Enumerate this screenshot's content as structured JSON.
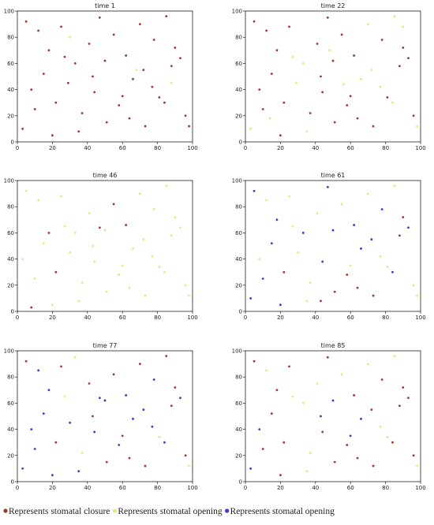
{
  "chart_data": [
    {
      "type": "scatter",
      "title": "time 1",
      "xlim": [
        0,
        100
      ],
      "ylim": [
        0,
        100
      ],
      "xticks": [
        0,
        20,
        40,
        60,
        80,
        100
      ],
      "yticks": [
        0,
        20,
        40,
        60,
        80,
        100
      ],
      "series": [
        {
          "color": "#a3372b",
          "x": [
            5,
            12,
            18,
            25,
            33,
            41,
            47,
            55,
            62,
            70,
            78,
            85,
            93,
            8,
            15,
            22,
            29,
            37,
            44,
            51,
            58,
            66,
            73,
            81,
            88,
            96,
            3,
            20,
            35,
            50,
            64,
            77,
            90,
            10,
            27,
            43,
            60,
            72,
            84,
            98
          ],
          "y": [
            92,
            85,
            70,
            88,
            60,
            75,
            95,
            82,
            66,
            90,
            78,
            96,
            64,
            40,
            52,
            30,
            45,
            22,
            38,
            15,
            28,
            48,
            12,
            34,
            58,
            20,
            10,
            5,
            8,
            62,
            18,
            42,
            72,
            25,
            65,
            50,
            35,
            55,
            30,
            12
          ]
        },
        {
          "color": "#ede57a",
          "x": [
            30,
            68,
            88
          ],
          "y": [
            80,
            55,
            45
          ]
        }
      ]
    },
    {
      "type": "scatter",
      "title": "time 22",
      "xlim": [
        0,
        100
      ],
      "ylim": [
        0,
        100
      ],
      "xticks": [
        0,
        20,
        40,
        60,
        80,
        100
      ],
      "yticks": [
        0,
        20,
        40,
        60,
        80,
        100
      ],
      "series": [
        {
          "color": "#a3372b",
          "x": [
            5,
            12,
            18,
            25,
            41,
            47,
            55,
            62,
            78,
            93,
            8,
            15,
            22,
            37,
            44,
            51,
            58,
            73,
            81,
            88,
            96,
            20,
            50,
            64,
            90,
            10,
            43,
            60
          ],
          "y": [
            92,
            85,
            70,
            88,
            75,
            95,
            82,
            66,
            78,
            64,
            40,
            52,
            30,
            22,
            38,
            15,
            28,
            12,
            34,
            58,
            20,
            5,
            62,
            18,
            72,
            25,
            50,
            35
          ]
        },
        {
          "color": "#ede57a",
          "x": [
            33,
            70,
            85,
            29,
            66,
            3,
            35,
            77,
            27,
            72,
            84,
            98,
            48,
            56,
            90,
            14
          ],
          "y": [
            60,
            90,
            96,
            45,
            48,
            10,
            8,
            42,
            65,
            55,
            30,
            12,
            70,
            44,
            88,
            18
          ]
        }
      ]
    },
    {
      "type": "scatter",
      "title": "time 46",
      "xlim": [
        0,
        100
      ],
      "ylim": [
        0,
        100
      ],
      "xticks": [
        0,
        20,
        40,
        60,
        80,
        100
      ],
      "yticks": [
        0,
        20,
        40,
        60,
        80,
        100
      ],
      "series": [
        {
          "color": "#a3372b",
          "x": [
            18,
            47,
            55,
            62,
            8,
            22
          ],
          "y": [
            60,
            64,
            82,
            66,
            3,
            30
          ]
        },
        {
          "color": "#ede57a",
          "x": [
            5,
            12,
            25,
            33,
            41,
            70,
            78,
            85,
            93,
            15,
            37,
            44,
            51,
            58,
            73,
            81,
            88,
            96,
            20,
            35,
            50,
            64,
            77,
            90,
            10,
            27,
            43,
            60,
            72,
            84,
            98,
            3,
            30,
            66
          ],
          "y": [
            92,
            85,
            88,
            60,
            75,
            90,
            78,
            96,
            64,
            52,
            22,
            38,
            15,
            28,
            12,
            34,
            58,
            20,
            5,
            8,
            62,
            18,
            42,
            72,
            25,
            65,
            50,
            35,
            55,
            30,
            12,
            40,
            45,
            48
          ]
        }
      ]
    },
    {
      "type": "scatter",
      "title": "time 61",
      "xlim": [
        0,
        100
      ],
      "ylim": [
        0,
        100
      ],
      "xticks": [
        0,
        20,
        40,
        60,
        80,
        100
      ],
      "yticks": [
        0,
        20,
        40,
        60,
        80,
        100
      ],
      "series": [
        {
          "color": "#a3372b",
          "x": [
            22,
            51,
            58,
            73,
            88,
            64,
            90,
            43
          ],
          "y": [
            30,
            15,
            28,
            12,
            58,
            18,
            72,
            8
          ]
        },
        {
          "color": "#ede57a",
          "x": [
            12,
            25,
            41,
            55,
            70,
            85,
            8,
            37,
            81,
            96,
            35,
            77,
            27,
            60,
            98,
            30
          ],
          "y": [
            85,
            88,
            75,
            82,
            90,
            96,
            40,
            22,
            34,
            20,
            8,
            42,
            65,
            35,
            12,
            45
          ]
        },
        {
          "color": "#3a3ad0",
          "x": [
            5,
            18,
            33,
            47,
            62,
            78,
            93,
            15,
            44,
            66,
            20,
            50,
            10,
            72,
            84,
            3
          ],
          "y": [
            92,
            70,
            60,
            95,
            66,
            78,
            64,
            52,
            38,
            48,
            5,
            62,
            25,
            55,
            30,
            10
          ]
        }
      ]
    },
    {
      "type": "scatter",
      "title": "time 77",
      "xlim": [
        0,
        100
      ],
      "ylim": [
        0,
        100
      ],
      "xticks": [
        0,
        20,
        40,
        60,
        80,
        100
      ],
      "yticks": [
        0,
        20,
        40,
        60,
        80,
        100
      ],
      "series": [
        {
          "color": "#a3372b",
          "x": [
            5,
            25,
            41,
            55,
            70,
            85,
            22,
            51,
            73,
            88,
            64,
            90,
            43,
            60,
            96
          ],
          "y": [
            92,
            88,
            75,
            82,
            90,
            96,
            30,
            15,
            12,
            58,
            18,
            72,
            50,
            35,
            20
          ]
        },
        {
          "color": "#ede57a",
          "x": [
            33,
            37,
            81,
            27,
            98
          ],
          "y": [
            95,
            22,
            34,
            65,
            12
          ]
        },
        {
          "color": "#3a3ad0",
          "x": [
            12,
            18,
            47,
            62,
            78,
            93,
            8,
            15,
            44,
            58,
            66,
            20,
            35,
            50,
            77,
            10,
            72,
            84,
            3,
            30
          ],
          "y": [
            85,
            70,
            64,
            66,
            78,
            64,
            40,
            52,
            38,
            28,
            48,
            5,
            8,
            62,
            42,
            25,
            55,
            30,
            10,
            45
          ]
        }
      ]
    },
    {
      "type": "scatter",
      "title": "time 85",
      "xlim": [
        0,
        100
      ],
      "ylim": [
        0,
        100
      ],
      "xticks": [
        0,
        20,
        40,
        60,
        80,
        100
      ],
      "yticks": [
        0,
        20,
        40,
        60,
        80,
        100
      ],
      "series": [
        {
          "color": "#a3372b",
          "x": [
            5,
            18,
            25,
            47,
            62,
            78,
            93,
            15,
            22,
            44,
            51,
            58,
            73,
            88,
            96,
            20,
            64,
            90,
            10,
            72,
            84
          ],
          "y": [
            92,
            70,
            88,
            95,
            66,
            78,
            64,
            52,
            30,
            38,
            15,
            28,
            12,
            58,
            20,
            5,
            18,
            72,
            25,
            55,
            30
          ]
        },
        {
          "color": "#ede57a",
          "x": [
            12,
            33,
            41,
            55,
            70,
            85,
            37,
            81,
            35,
            77,
            27,
            98
          ],
          "y": [
            85,
            60,
            75,
            82,
            90,
            96,
            22,
            34,
            8,
            42,
            65,
            12
          ]
        },
        {
          "color": "#3a3ad0",
          "x": [
            8,
            50,
            66,
            43,
            60,
            3
          ],
          "y": [
            40,
            62,
            48,
            50,
            35,
            10
          ]
        }
      ]
    }
  ],
  "legend": [
    {
      "label": "Represents stomatal closure",
      "color": "#a3372b"
    },
    {
      "label": "Represents stomatal opening",
      "color": "#ede57a"
    },
    {
      "label": "Represents stomatal opening",
      "color": "#3a3ad0"
    }
  ]
}
